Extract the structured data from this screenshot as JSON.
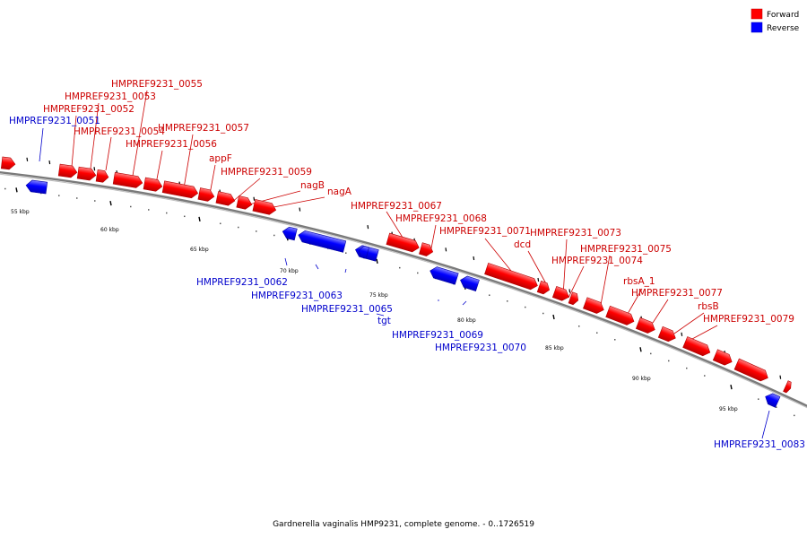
{
  "caption": "Gardnerella vaginalis HMP9231, complete genome. - 0..1726519",
  "legend": [
    {
      "label": "Forward",
      "color": "#ff0000"
    },
    {
      "label": "Reverse",
      "color": "#0000ff"
    }
  ],
  "colors": {
    "forward": "#ff0000",
    "forward_label": "#cc0000",
    "reverse": "#0000ff",
    "reverse_label": "#0000cc",
    "backbone": "#888888"
  },
  "tick_labels": [
    "55 kbp",
    "60 kbp",
    "65 kbp",
    "70 kbp",
    "75 kbp",
    "80 kbp",
    "85 kbp",
    "90 kbp",
    "95 kbp"
  ],
  "genes": [
    {
      "label": "",
      "strand": "forward"
    },
    {
      "label": "HMPREF9231_0051",
      "strand": "reverse"
    },
    {
      "label": "HMPREF9231_0052",
      "strand": "forward"
    },
    {
      "label": "HMPREF9231_0053",
      "strand": "forward"
    },
    {
      "label": "HMPREF9231_0054",
      "strand": "forward"
    },
    {
      "label": "HMPREF9231_0055",
      "strand": "forward"
    },
    {
      "label": "HMPREF9231_0056",
      "strand": "forward"
    },
    {
      "label": "HMPREF9231_0057",
      "strand": "forward"
    },
    {
      "label": "appF",
      "strand": "forward"
    },
    {
      "label": "HMPREF9231_0059",
      "strand": "forward"
    },
    {
      "label": "nagB",
      "strand": "forward"
    },
    {
      "label": "nagA",
      "strand": "forward"
    },
    {
      "label": "HMPREF9231_0062",
      "strand": "reverse"
    },
    {
      "label": "HMPREF9231_0063",
      "strand": "reverse"
    },
    {
      "label": "HMPREF9231_0065",
      "strand": "reverse"
    },
    {
      "label": "tgt",
      "strand": "reverse"
    },
    {
      "label": "HMPREF9231_0067",
      "strand": "forward"
    },
    {
      "label": "HMPREF9231_0068",
      "strand": "forward"
    },
    {
      "label": "HMPREF9231_0069",
      "strand": "reverse"
    },
    {
      "label": "HMPREF9231_0070",
      "strand": "reverse"
    },
    {
      "label": "HMPREF9231_0071",
      "strand": "forward"
    },
    {
      "label": "dcd",
      "strand": "forward"
    },
    {
      "label": "HMPREF9231_0073",
      "strand": "forward"
    },
    {
      "label": "HMPREF9231_0074",
      "strand": "forward"
    },
    {
      "label": "HMPREF9231_0075",
      "strand": "forward"
    },
    {
      "label": "rbsA_1",
      "strand": "forward"
    },
    {
      "label": "HMPREF9231_0077",
      "strand": "forward"
    },
    {
      "label": "rbsB",
      "strand": "forward"
    },
    {
      "label": "HMPREF9231_0079",
      "strand": "forward"
    },
    {
      "label": "",
      "strand": "forward"
    },
    {
      "label": "",
      "strand": "forward"
    },
    {
      "label": "HMPREF9231_0083",
      "strand": "reverse"
    },
    {
      "label": "",
      "strand": "forward"
    }
  ]
}
